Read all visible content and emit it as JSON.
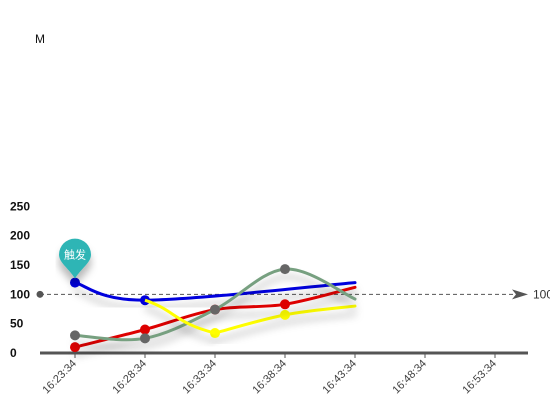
{
  "chart_data": {
    "type": "line",
    "unit_label": "M",
    "ylim": [
      0,
      250
    ],
    "yticks": [
      0,
      50,
      100,
      150,
      200,
      250
    ],
    "categories": [
      "16:23:34",
      "16:28:34",
      "16:33:34",
      "16:38:34",
      "16:43:34",
      "16:48:34",
      "16:53:34"
    ],
    "grid": false,
    "legend": "none",
    "series": [
      {
        "color": "#0000dd",
        "values": [
          120,
          90,
          null,
          null,
          null,
          null,
          null
        ],
        "tail_to": 120
      },
      {
        "color": "#ffff00",
        "values": [
          null,
          null,
          34,
          65,
          null,
          null,
          null
        ],
        "tail_to": 80
      },
      {
        "color": "#dd0000",
        "values": [
          10,
          40,
          74,
          83,
          null,
          null,
          null
        ],
        "tail_to": 112
      },
      {
        "color": "#77a080",
        "values": [
          30,
          25,
          74,
          143,
          null,
          null,
          null
        ],
        "tail_to": 92
      }
    ],
    "mark_line": {
      "value": 100,
      "label": "100",
      "color": "#555555"
    },
    "mark_point": {
      "label": "触发",
      "value": 120,
      "category": "16:23:34",
      "color": "#2fb5b5"
    }
  }
}
